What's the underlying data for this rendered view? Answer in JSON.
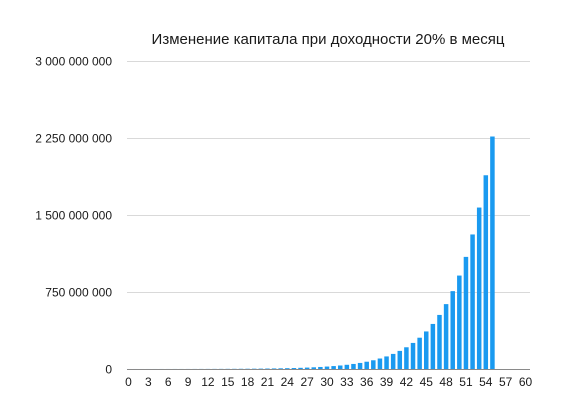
{
  "chart_data": {
    "type": "bar",
    "title": "Изменение капитала при доходности 20% в месяц",
    "xlabel": "",
    "ylabel": "",
    "ylim": [
      0,
      3000000000
    ],
    "yticks": [
      0,
      750000000,
      1500000000,
      2250000000,
      3000000000
    ],
    "ytick_labels": [
      "0",
      "750 000 000",
      "1 500 000 000",
      "2 250 000 000",
      "3 000 000 000"
    ],
    "xtick_labels": [
      "0",
      "3",
      "6",
      "9",
      "12",
      "15",
      "18",
      "21",
      "24",
      "27",
      "30",
      "33",
      "36",
      "39",
      "42",
      "45",
      "48",
      "51",
      "54",
      "57",
      "60"
    ],
    "grid": true,
    "legend": "none",
    "bar_color": "#1a9af0",
    "x": [
      0,
      1,
      2,
      3,
      4,
      5,
      6,
      7,
      8,
      9,
      10,
      11,
      12,
      13,
      14,
      15,
      16,
      17,
      18,
      19,
      20,
      21,
      22,
      23,
      24,
      25,
      26,
      27,
      28,
      29,
      30,
      31,
      32,
      33,
      34,
      35,
      36,
      37,
      38,
      39,
      40,
      41,
      42,
      43,
      44,
      45,
      46,
      47,
      48,
      49,
      50,
      51,
      52,
      53,
      54,
      55,
      56,
      57,
      58,
      59,
      60
    ],
    "values": [
      100000,
      120000,
      144000,
      172800,
      207360,
      248832,
      298598,
      358318,
      429982,
      515978,
      619174,
      743008,
      891610,
      1069932,
      1283918,
      1540702,
      1848843,
      2218611,
      2662333,
      3194800,
      3833760,
      4600512,
      5520614,
      6624737,
      7949685,
      9539622,
      11447546,
      13737055,
      16484466,
      19781359,
      23737631,
      28485157,
      34182189,
      41018626,
      49222352,
      59066822,
      70880187,
      85056224,
      102067469,
      122480963,
      146977155,
      176372586,
      211647104,
      253976524,
      304771829,
      365726195,
      438871434,
      526645721,
      631974865,
      758369838,
      910043806,
      1092052567,
      1310463080,
      1572555696,
      1887066835,
      2264480202,
      0,
      0,
      0,
      0,
      0
    ],
    "values_note_removed": true
  }
}
